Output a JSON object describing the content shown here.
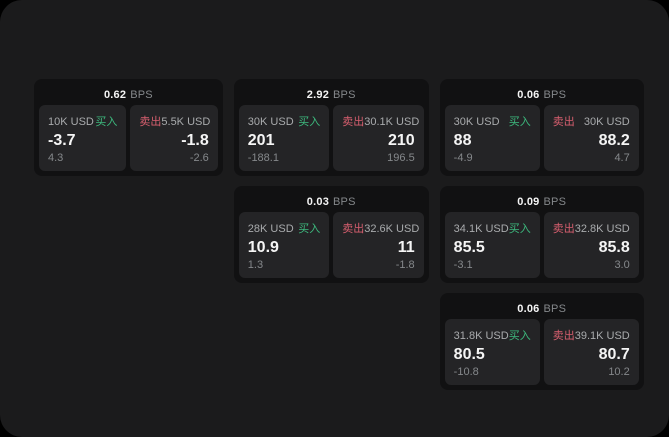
{
  "colors": {
    "page_bg": "#1b1b1c",
    "card_bg": "#111112",
    "panel_bg": "#242426",
    "text_primary": "#f5f5f5",
    "text_secondary": "#a9abad",
    "text_dim": "#85888b",
    "buy_green": "#3dba7e",
    "sell_red": "#d85f6f"
  },
  "labels": {
    "bps_suffix": "BPS",
    "buy": "买入",
    "sell": "卖出"
  },
  "cards": [
    {
      "grid": {
        "row": 1,
        "col": 1
      },
      "bps": "0.62",
      "buy": {
        "amount": "10K USD",
        "value": "-3.7",
        "sub": "4.3"
      },
      "sell": {
        "amount": "5.5K USD",
        "value": "-1.8",
        "sub": "-2.6"
      }
    },
    {
      "grid": {
        "row": 1,
        "col": 2
      },
      "bps": "2.92",
      "buy": {
        "amount": "30K USD",
        "value": "201",
        "sub": "-188.1"
      },
      "sell": {
        "amount": "30.1K USD",
        "value": "210",
        "sub": "196.5"
      }
    },
    {
      "grid": {
        "row": 1,
        "col": 3
      },
      "bps": "0.06",
      "buy": {
        "amount": "30K USD",
        "value": "88",
        "sub": "-4.9"
      },
      "sell": {
        "amount": "30K USD",
        "value": "88.2",
        "sub": "4.7"
      }
    },
    {
      "grid": {
        "row": 2,
        "col": 2
      },
      "bps": "0.03",
      "buy": {
        "amount": "28K USD",
        "value": "10.9",
        "sub": "1.3"
      },
      "sell": {
        "amount": "32.6K USD",
        "value": "11",
        "sub": "-1.8"
      }
    },
    {
      "grid": {
        "row": 2,
        "col": 3
      },
      "bps": "0.09",
      "buy": {
        "amount": "34.1K USD",
        "value": "85.5",
        "sub": "-3.1"
      },
      "sell": {
        "amount": "32.8K USD",
        "value": "85.8",
        "sub": "3.0"
      }
    },
    {
      "grid": {
        "row": 3,
        "col": 3
      },
      "bps": "0.06",
      "buy": {
        "amount": "31.8K USD",
        "value": "80.5",
        "sub": "-10.8"
      },
      "sell": {
        "amount": "39.1K USD",
        "value": "80.7",
        "sub": "10.2"
      }
    }
  ]
}
